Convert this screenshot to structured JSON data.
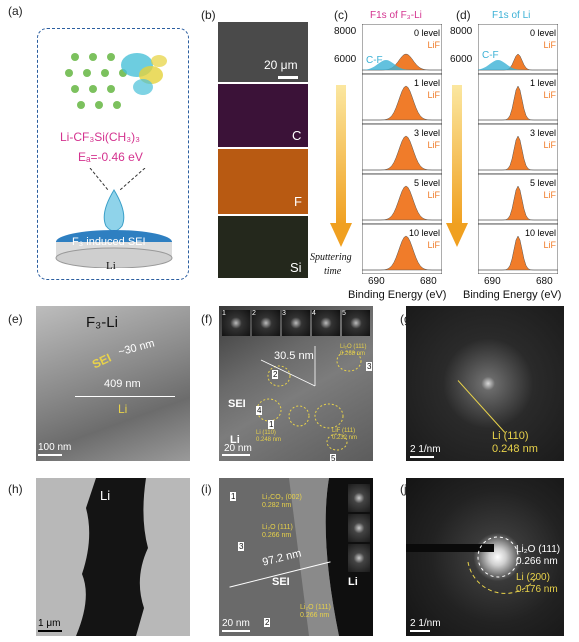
{
  "panels": {
    "a": {
      "label": "(a)",
      "formula": "Li-CF₃Si(CH₃)₃",
      "energy": "Eₐ=-0.46 eV",
      "sei": "F₃ induced SEI",
      "li": "Li"
    },
    "b": {
      "label": "(b)",
      "scale": "20 μm",
      "maps": [
        "C",
        "F",
        "Si"
      ]
    },
    "c": {
      "label": "(c)",
      "title": "F1s of F₃-Li",
      "xlabel": "Binding Energy (eV)",
      "xticks": [
        "690",
        "680"
      ],
      "ytick_labels": [
        "8000",
        "6000"
      ],
      "levels": [
        "0 level",
        "1 level",
        "3 level",
        "5 level",
        "10 level"
      ],
      "peak": "LiF",
      "cf": "C-F"
    },
    "d": {
      "label": "(d)",
      "title": "F1s of Li",
      "xlabel": "Binding Energy (eV)",
      "xticks": [
        "690",
        "680"
      ],
      "ytick_labels": [
        "8000",
        "6000"
      ],
      "levels": [
        "0 level",
        "1 level",
        "3 level",
        "5 level",
        "10 level"
      ],
      "peak": "LiF",
      "cf": "C-F"
    },
    "sputter": {
      "line1": "Sputtering",
      "line2": "time"
    },
    "e": {
      "label": "(e)",
      "title": "F₃-Li",
      "sei": "SEI",
      "sei_thick": "~30 nm",
      "width": "409 nm",
      "li": "Li",
      "scale": "100 nm"
    },
    "f": {
      "label": "(f)",
      "fft_nums": [
        "1",
        "2",
        "3",
        "4",
        "5"
      ],
      "thick": "30.5 nm",
      "sei": "SEI",
      "li": "Li",
      "scale": "20 nm",
      "ann1": "Li₂O (111)",
      "ann1b": "0.268 nm",
      "ann2": "Li (110)",
      "ann2b": "0.248 nm",
      "ann3": "LiF (111)",
      "ann3b": "0.232 nm",
      "nums": [
        "1",
        "2",
        "3",
        "4",
        "5"
      ]
    },
    "g": {
      "label": "(g)",
      "ann1": "Li (110)",
      "ann2": "0.248 nm",
      "scale": "2  1/nm"
    },
    "h": {
      "label": "(h)",
      "li": "Li",
      "scale": "1 μm"
    },
    "i": {
      "label": "(i)",
      "ann1": "Li₂CO₃ (002)",
      "ann1b": "0.282 nm",
      "ann2": "Li₂O (111)",
      "ann2b": "0.266 nm",
      "ann3": "Li₂O (111)",
      "ann3b": "0.266 nm",
      "thick": "97.2 nm",
      "sei": "SEI",
      "li": "Li",
      "scale": "20 nm",
      "nums": [
        "1",
        "2",
        "3"
      ]
    },
    "j": {
      "label": "(j)",
      "ann1": "Li₂O (111)",
      "ann1b": "0.266 nm",
      "ann2": "Li (200)",
      "ann2b": "0.176 nm",
      "scale": "2  1/nm"
    }
  },
  "colors": {
    "orange": "#f07c2a",
    "pink": "#d4338f",
    "cyan": "#3bb1d6",
    "yellow": "#e8d24a",
    "gray_img": "#5a5a5a"
  }
}
